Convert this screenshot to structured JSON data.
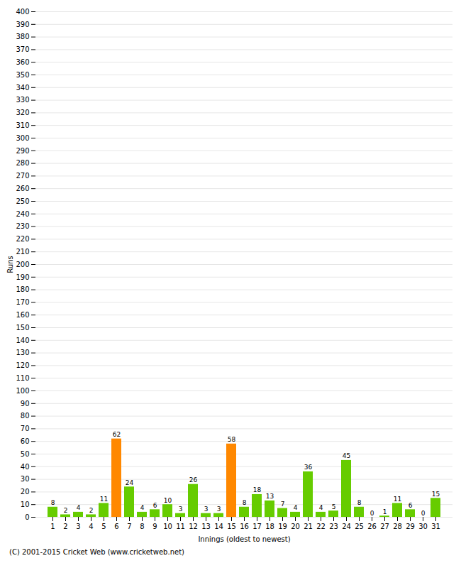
{
  "chart_data": {
    "type": "bar",
    "xlabel": "Innings (oldest to newest)",
    "ylabel": "Runs",
    "categories": [
      "1",
      "2",
      "3",
      "4",
      "5",
      "6",
      "7",
      "8",
      "9",
      "10",
      "11",
      "12",
      "13",
      "14",
      "15",
      "16",
      "17",
      "18",
      "19",
      "20",
      "21",
      "22",
      "23",
      "24",
      "25",
      "26",
      "27",
      "28",
      "29",
      "30",
      "31"
    ],
    "values": [
      8,
      2,
      4,
      2,
      11,
      62,
      24,
      4,
      6,
      10,
      3,
      26,
      3,
      3,
      58,
      8,
      18,
      13,
      7,
      4,
      36,
      4,
      5,
      45,
      8,
      0,
      1,
      11,
      6,
      0,
      15
    ],
    "colors": [
      "#66cc00",
      "#66cc00",
      "#66cc00",
      "#66cc00",
      "#66cc00",
      "#ff8800",
      "#66cc00",
      "#66cc00",
      "#66cc00",
      "#66cc00",
      "#66cc00",
      "#66cc00",
      "#66cc00",
      "#66cc00",
      "#ff8800",
      "#66cc00",
      "#66cc00",
      "#66cc00",
      "#66cc00",
      "#66cc00",
      "#66cc00",
      "#66cc00",
      "#66cc00",
      "#66cc00",
      "#66cc00",
      "#66cc00",
      "#66cc00",
      "#66cc00",
      "#66cc00",
      "#66cc00",
      "#66cc00"
    ],
    "ylim": [
      0,
      400
    ],
    "yticks": [
      0,
      10,
      20,
      30,
      40,
      50,
      60,
      70,
      80,
      90,
      100,
      110,
      120,
      130,
      140,
      150,
      160,
      170,
      180,
      190,
      200,
      210,
      220,
      230,
      240,
      250,
      260,
      270,
      280,
      290,
      300,
      310,
      320,
      330,
      340,
      350,
      360,
      370,
      380,
      390,
      400
    ],
    "grid": true,
    "data_labels": true,
    "footer": "(C) 2001-2015 Cricket Web (www.cricketweb.net)"
  }
}
